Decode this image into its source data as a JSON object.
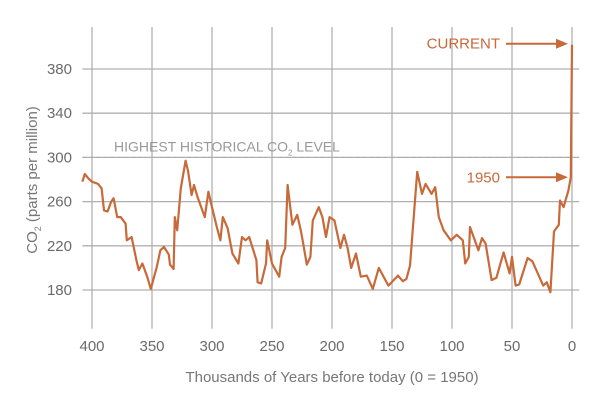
{
  "chart_data": {
    "type": "line",
    "title": "",
    "xlabel": "Thousands of Years before today (0 = 1950)",
    "ylabel_main": "CO",
    "ylabel_sub": "2",
    "ylabel_rest": " (parts per million)",
    "xlim": [
      408,
      -6
    ],
    "ylim": [
      145,
      418
    ],
    "xticks": [
      400,
      350,
      300,
      250,
      200,
      150,
      100,
      50,
      0
    ],
    "yticks": [
      180,
      220,
      260,
      300,
      340,
      380
    ],
    "grid": true,
    "line_color": "#c8693a",
    "grid_color": "#b0b0b0",
    "reference_line": {
      "value": 300,
      "label_main": "HIGHEST HISTORICAL CO",
      "label_sub": "2",
      "label_rest": " LEVEL"
    },
    "annotations": [
      {
        "text": "CURRENT",
        "x": 0,
        "y": 402
      },
      {
        "text": "1950",
        "x": 0,
        "y": 282
      }
    ],
    "series": [
      {
        "name": "CO2",
        "x": [
          408,
          406,
          403,
          400,
          395,
          392,
          390,
          387,
          384,
          382,
          379,
          376,
          372,
          371,
          367,
          363,
          361,
          358,
          354,
          351,
          346,
          343,
          340,
          336,
          335,
          332,
          331,
          329,
          326,
          322,
          320,
          317,
          315,
          312,
          309,
          306,
          303,
          300,
          296,
          293,
          291,
          287,
          283,
          278,
          275,
          272,
          269,
          263,
          262,
          259,
          255,
          254,
          250,
          247,
          244,
          242,
          239,
          237,
          233,
          229,
          226,
          224,
          221,
          218,
          216,
          211,
          208,
          205,
          202,
          198,
          193,
          190,
          187,
          184,
          180,
          176,
          171,
          166,
          161,
          153,
          145,
          141,
          138,
          135,
          129,
          125,
          122,
          117,
          114,
          111,
          107,
          101,
          96,
          91,
          89,
          86,
          85,
          78,
          75,
          72,
          67,
          63,
          57,
          52,
          50,
          47,
          44,
          37,
          33,
          24,
          21,
          18,
          15,
          11,
          10,
          7,
          3,
          1,
          0
        ],
        "y": [
          278,
          285,
          281,
          278,
          276,
          272,
          252,
          251,
          260,
          263,
          246,
          246,
          240,
          225,
          228,
          207,
          198,
          204,
          192,
          181,
          201,
          216,
          219,
          212,
          203,
          199,
          246,
          234,
          272,
          297,
          288,
          266,
          275,
          264,
          255,
          246,
          269,
          255,
          237,
          225,
          246,
          236,
          213,
          204,
          228,
          225,
          228,
          207,
          187,
          186,
          204,
          225,
          204,
          198,
          192,
          210,
          218,
          275,
          239,
          248,
          234,
          222,
          203,
          210,
          243,
          255,
          246,
          228,
          246,
          243,
          218,
          230,
          218,
          200,
          213,
          192,
          193,
          181,
          200,
          184,
          193,
          188,
          190,
          202,
          287,
          267,
          276,
          267,
          273,
          246,
          234,
          225,
          230,
          225,
          204,
          210,
          237,
          216,
          227,
          222,
          189,
          191,
          214,
          195,
          210,
          184,
          185,
          209,
          206,
          184,
          187,
          178,
          233,
          239,
          261,
          255,
          270,
          282,
          402
        ]
      }
    ]
  }
}
